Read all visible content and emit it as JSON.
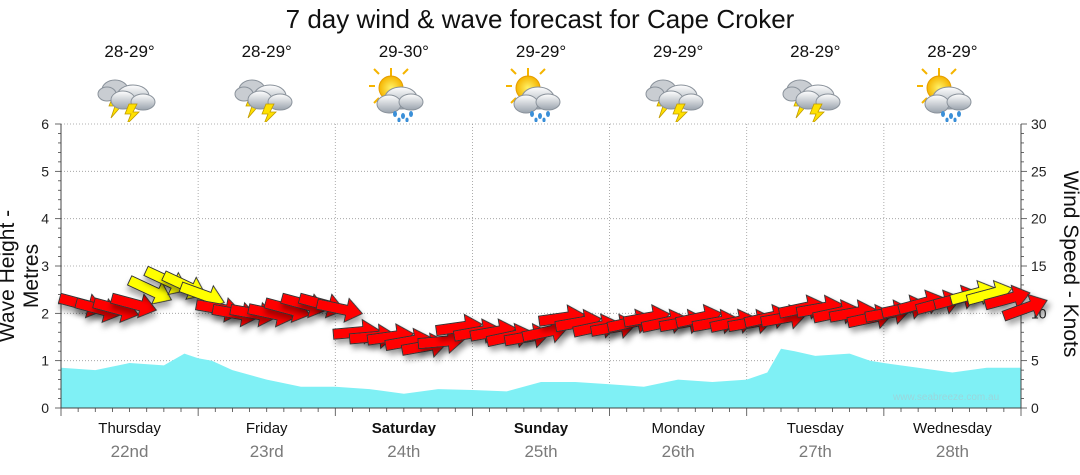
{
  "chart_data": {
    "type": "area",
    "title": "7 day wind & wave forecast for Cape Croker",
    "ylabel_left": "Wave Height - Metres",
    "ylabel_right": "Wind Speed - Knots",
    "y_left_range": [
      0,
      6
    ],
    "y_right_range": [
      0,
      30
    ],
    "y_left_ticks": [
      "0",
      "1",
      "2",
      "3",
      "4",
      "5",
      "6"
    ],
    "y_right_ticks": [
      "0",
      "5",
      "10",
      "15",
      "20",
      "25",
      "30"
    ],
    "grid": true,
    "days": [
      {
        "name": "Thursday",
        "date": "22nd",
        "temp": "28-29°",
        "icon": "thunderstorm-icon",
        "bold": false
      },
      {
        "name": "Friday",
        "date": "23rd",
        "temp": "28-29°",
        "icon": "thunderstorm-icon",
        "bold": false
      },
      {
        "name": "Saturday",
        "date": "24th",
        "temp": "29-30°",
        "icon": "sun-showers-icon",
        "bold": true
      },
      {
        "name": "Sunday",
        "date": "25th",
        "temp": "29-29°",
        "icon": "sun-showers-icon",
        "bold": true
      },
      {
        "name": "Monday",
        "date": "26th",
        "temp": "29-29°",
        "icon": "thunderstorm-icon",
        "bold": false
      },
      {
        "name": "Tuesday",
        "date": "27th",
        "temp": "28-29°",
        "icon": "thunderstorm-icon",
        "bold": false
      },
      {
        "name": "Wednesday",
        "date": "28th",
        "temp": "28-29°",
        "icon": "sun-showers-icon",
        "bold": false
      }
    ],
    "x_range_days": [
      0,
      7
    ],
    "wave_series": {
      "name": "Wave height (m)",
      "color": "#7ff0f5",
      "x": [
        0,
        0.25,
        0.5,
        0.75,
        0.9,
        1.0,
        1.1,
        1.25,
        1.5,
        1.75,
        2.0,
        2.25,
        2.5,
        2.75,
        3.0,
        3.25,
        3.5,
        3.75,
        4.0,
        4.25,
        4.5,
        4.75,
        5.0,
        5.15,
        5.25,
        5.35,
        5.5,
        5.75,
        5.9,
        6.0,
        6.25,
        6.5,
        6.75,
        7.0
      ],
      "values": [
        0.85,
        0.8,
        0.95,
        0.9,
        1.15,
        1.05,
        1.0,
        0.8,
        0.6,
        0.45,
        0.45,
        0.4,
        0.3,
        0.4,
        0.38,
        0.35,
        0.55,
        0.55,
        0.5,
        0.45,
        0.6,
        0.55,
        0.6,
        0.75,
        1.25,
        1.2,
        1.1,
        1.15,
        1.0,
        0.95,
        0.85,
        0.75,
        0.85,
        0.85
      ]
    },
    "wind_series": {
      "name": "Wind speed (knots)",
      "x": [
        0.0,
        0.12,
        0.25,
        0.38,
        0.5,
        0.62,
        0.75,
        0.88,
        1.0,
        1.12,
        1.25,
        1.38,
        1.5,
        1.62,
        1.75,
        1.88,
        2.0,
        2.12,
        2.25,
        2.38,
        2.5,
        2.62,
        2.75,
        2.88,
        3.0,
        3.12,
        3.25,
        3.38,
        3.5,
        3.62,
        3.75,
        3.88,
        4.0,
        4.12,
        4.25,
        4.38,
        4.5,
        4.62,
        4.75,
        4.88,
        5.0,
        5.12,
        5.25,
        5.38,
        5.5,
        5.62,
        5.75,
        5.88,
        6.0,
        6.12,
        6.25,
        6.38,
        6.5,
        6.62,
        6.75,
        6.88
      ],
      "values": [
        11,
        10.5,
        10.5,
        11,
        12.5,
        13.5,
        13,
        12,
        10.5,
        10,
        10,
        10,
        10.5,
        11,
        11,
        10.5,
        8,
        7.5,
        7.5,
        7,
        6.5,
        7,
        8.5,
        8,
        8,
        7.5,
        7.5,
        8,
        9.5,
        9,
        8.5,
        8.5,
        9,
        9.5,
        9,
        9,
        9.5,
        9,
        9,
        9,
        9.5,
        9.5,
        10.5,
        10.5,
        10,
        10,
        9.5,
        10,
        10.5,
        11,
        11,
        11.5,
        12,
        12,
        11.5,
        10.5
      ],
      "direction_deg": [
        15,
        15,
        15,
        15,
        25,
        25,
        25,
        20,
        10,
        10,
        10,
        12,
        15,
        15,
        15,
        12,
        -5,
        -5,
        -8,
        -10,
        -10,
        -5,
        -8,
        -10,
        -10,
        -12,
        -10,
        -12,
        -8,
        -10,
        -12,
        -10,
        -12,
        -10,
        -12,
        -10,
        -12,
        -10,
        -12,
        -10,
        -12,
        -10,
        -12,
        -10,
        -12,
        -10,
        -12,
        -10,
        -12,
        -15,
        -15,
        -15,
        -15,
        -15,
        -15,
        -20
      ],
      "color_low": "#ff0000",
      "color_high": "#ffff00",
      "high_threshold_knots": 12
    }
  },
  "watermark": "www.seabreeze.com.au",
  "colors": {
    "grid": "#999999",
    "axis": "#444444",
    "wave_fill": "#7ff0f5",
    "arrow_stroke": "#333333"
  }
}
